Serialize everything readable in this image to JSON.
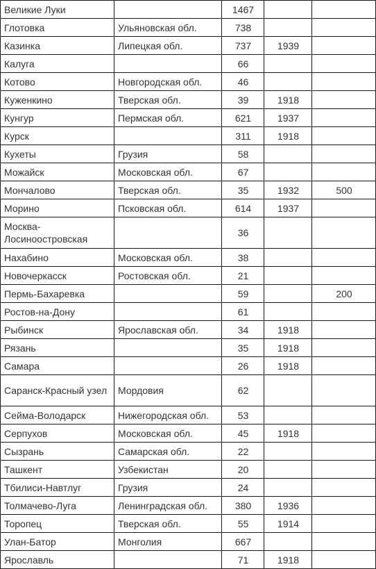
{
  "rows": [
    {
      "name": "Великие Луки",
      "region": "",
      "num": "1467",
      "year": "",
      "extra": ""
    },
    {
      "name": "Глотовка",
      "region": "Ульяновская обл.",
      "num": "738",
      "year": "",
      "extra": ""
    },
    {
      "name": "Казинка",
      "region": "Липецкая обл.",
      "num": "737",
      "year": "1939",
      "extra": ""
    },
    {
      "name": "Калуга",
      "region": "",
      "num": "66",
      "year": "",
      "extra": ""
    },
    {
      "name": "Котово",
      "region": "Новгородская обл.",
      "num": "46",
      "year": "",
      "extra": ""
    },
    {
      "name": "Куженкино",
      "region": "Тверская обл.",
      "num": "39",
      "year": "1918",
      "extra": ""
    },
    {
      "name": "Кунгур",
      "region": "Пермская обл.",
      "num": "621",
      "year": "1937",
      "extra": ""
    },
    {
      "name": "Курск",
      "region": "",
      "num": "311",
      "year": "1918",
      "extra": ""
    },
    {
      "name": "Кухеты",
      "region": "Грузия",
      "num": "58",
      "year": "",
      "extra": ""
    },
    {
      "name": "Можайск",
      "region": "Московская обл.",
      "num": "67",
      "year": "",
      "extra": ""
    },
    {
      "name": "Мончалово",
      "region": "Тверская обл.",
      "num": "35",
      "year": "1932",
      "extra": "500"
    },
    {
      "name": "Морино",
      "region": "Псковская обл.",
      "num": "614",
      "year": "1937",
      "extra": ""
    },
    {
      "name": "Москва-Лосиноостровская",
      "region": "",
      "num": "36",
      "year": "",
      "extra": "",
      "tall": true
    },
    {
      "name": "Нахабино",
      "region": "Московская обл.",
      "num": "38",
      "year": "",
      "extra": ""
    },
    {
      "name": "Новочеркасск",
      "region": "Ростовская обл.",
      "num": "21",
      "year": "",
      "extra": ""
    },
    {
      "name": "Пермь-Бахаревка",
      "region": "",
      "num": "59",
      "year": "",
      "extra": "200"
    },
    {
      "name": "Ростов-на-Дону",
      "region": "",
      "num": "61",
      "year": "",
      "extra": ""
    },
    {
      "name": "Рыбинск",
      "region": "Ярославская обл.",
      "num": "34",
      "year": "1918",
      "extra": ""
    },
    {
      "name": "Рязань",
      "region": "",
      "num": "35",
      "year": "1918",
      "extra": ""
    },
    {
      "name": "Самара",
      "region": "",
      "num": "26",
      "year": "1918",
      "extra": ""
    },
    {
      "name": "Саранск-Красный узел",
      "region": "Мордовия",
      "num": "62",
      "year": "",
      "extra": "",
      "tall": true
    },
    {
      "name": "Сейма-Володарск",
      "region": "Нижегородская обл.",
      "num": "53",
      "year": "",
      "extra": ""
    },
    {
      "name": "Серпухов",
      "region": "Московская обл.",
      "num": "45",
      "year": "1918",
      "extra": ""
    },
    {
      "name": "Сызрань",
      "region": "Самарская обл.",
      "num": "22",
      "year": "",
      "extra": ""
    },
    {
      "name": "Ташкент",
      "region": "Узбекистан",
      "num": "20",
      "year": "",
      "extra": ""
    },
    {
      "name": "Тбилиси-Навтлуг",
      "region": "Грузия",
      "num": "24",
      "year": "",
      "extra": ""
    },
    {
      "name": "Толмачево-Луга",
      "region": "Ленинградская обл.",
      "num": "380",
      "year": "1936",
      "extra": ""
    },
    {
      "name": "Торопец",
      "region": "Тверская обл.",
      "num": "55",
      "year": "1914",
      "extra": ""
    },
    {
      "name": "Улан-Батор",
      "region": "Монголия",
      "num": "667",
      "year": "",
      "extra": ""
    },
    {
      "name": "Ярославль",
      "region": "",
      "num": "71",
      "year": "1918",
      "extra": ""
    }
  ]
}
